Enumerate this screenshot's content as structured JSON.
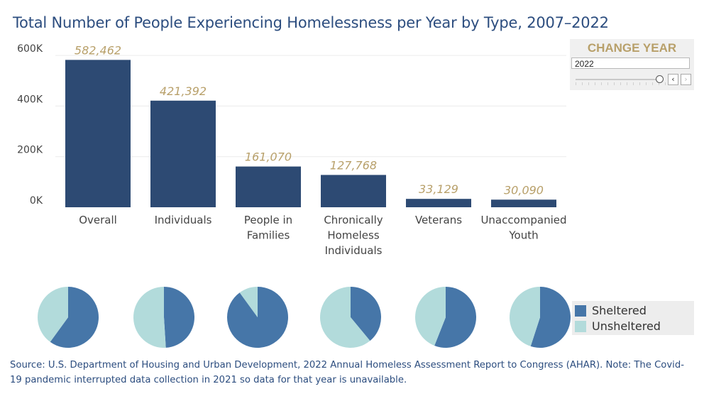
{
  "title": "Total Number of People Experiencing Homelessness per Year by Type, 2007–2022",
  "year_control": {
    "title": "CHANGE YEAR",
    "value": "2022",
    "prev_icon": "chevron-left-icon",
    "next_icon": "chevron-right-icon"
  },
  "legend": {
    "items": [
      {
        "label": "Sheltered",
        "color": "#4676a8"
      },
      {
        "label": "Unsheltered",
        "color": "#b2dbdb"
      }
    ]
  },
  "source": "Source: U.S. Department of Housing and Urban Development, 2022 Annual Homeless Assessment Report to Congress (AHAR). Note: The Covid-19 pandemic interrupted data collection in 2021 so data for that year is unavailable.",
  "colors": {
    "bar": "#2d4a73",
    "data_label": "#b8a06a",
    "title": "#2c4d7f",
    "sheltered": "#4676a8",
    "unsheltered": "#b2dbdb"
  },
  "chart_data": [
    {
      "type": "bar",
      "categories": [
        [
          "Overall"
        ],
        [
          "Individuals"
        ],
        [
          "People in",
          "Families"
        ],
        [
          "Chronically",
          "Homeless",
          "Individuals"
        ],
        [
          "Veterans"
        ],
        [
          "Unaccompanied",
          "Youth"
        ]
      ],
      "values": [
        582462,
        421392,
        161070,
        127768,
        33129,
        30090
      ],
      "data_labels": [
        "582,462",
        "421,392",
        "161,070",
        "127,768",
        "33,129",
        "30,090"
      ],
      "ylim": [
        0,
        620000
      ],
      "yticks": [
        0,
        200000,
        400000,
        600000
      ],
      "ytick_labels": [
        "0K",
        "200K",
        "400K",
        "600K"
      ],
      "grid": true
    },
    {
      "type": "pie",
      "categories": [
        "Overall",
        "Individuals",
        "People in Families",
        "Chronically Homeless Individuals",
        "Veterans",
        "Unaccompanied Youth"
      ],
      "series": [
        {
          "name": "Sheltered",
          "values": [
            0.6,
            0.49,
            0.9,
            0.39,
            0.56,
            0.55
          ]
        },
        {
          "name": "Unsheltered",
          "values": [
            0.4,
            0.51,
            0.1,
            0.61,
            0.44,
            0.45
          ]
        }
      ]
    }
  ]
}
